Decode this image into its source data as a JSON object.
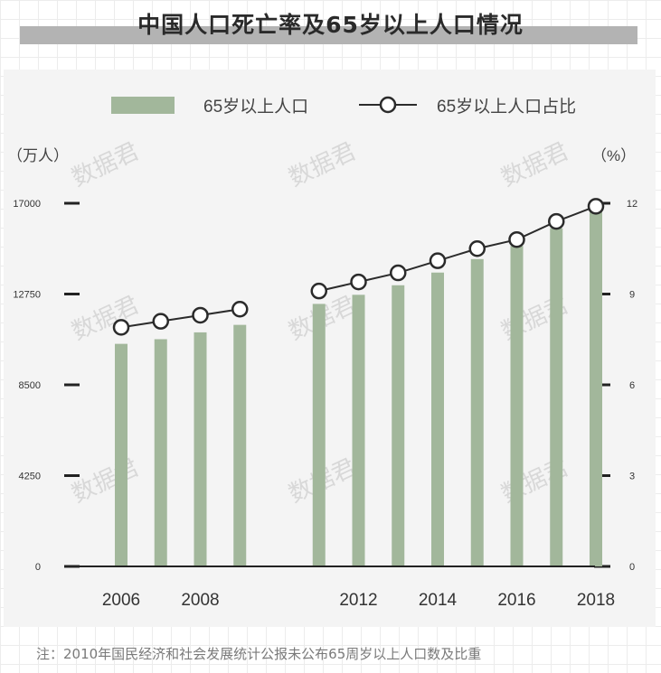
{
  "title": "中国人口死亡率及65岁以上人口情况",
  "footnote": "注：2010年国民经济和社会发展统计公报未公布65周岁以上人口数及比重",
  "watermark": "数据君",
  "chart_data": {
    "type": "bar+line",
    "legend": {
      "bar": "65岁以上人口",
      "line": "65岁以上人口占比"
    },
    "left_axis": {
      "unit": "（万人）",
      "min": 0,
      "max": 17000,
      "ticks": [
        0,
        4250,
        8500,
        12750,
        17000
      ]
    },
    "right_axis": {
      "unit": "（%）",
      "min": 0,
      "max": 12,
      "ticks": [
        0,
        3,
        6,
        9,
        12
      ]
    },
    "x_tick_labels": [
      "2006",
      "2008",
      "2012",
      "2014",
      "2016",
      "2018"
    ],
    "series": [
      {
        "name": "65岁以上人口",
        "kind": "bar",
        "color": "#a2b79b",
        "x": [
          2006,
          2007,
          2008,
          2009,
          2011,
          2012,
          2013,
          2014,
          2015,
          2016,
          2017,
          2018
        ],
        "values": [
          10419,
          10636,
          10956,
          11307,
          12288,
          12714,
          13161,
          13755,
          14386,
          15003,
          15831,
          16658
        ]
      },
      {
        "name": "65岁以上人口占比",
        "kind": "line",
        "color": "#2b2b2b",
        "x": [
          2006,
          2007,
          2008,
          2009,
          2011,
          2012,
          2013,
          2014,
          2015,
          2016,
          2017,
          2018
        ],
        "values": [
          7.9,
          8.1,
          8.3,
          8.5,
          9.1,
          9.4,
          9.7,
          10.1,
          10.5,
          10.8,
          11.4,
          11.9
        ]
      }
    ]
  }
}
